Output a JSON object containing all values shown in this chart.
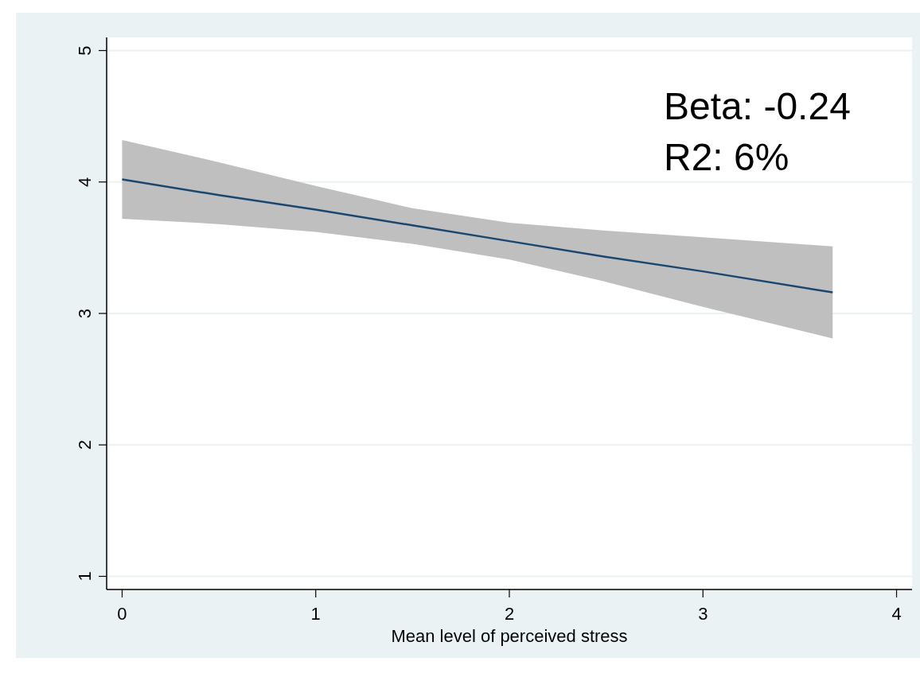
{
  "chart_data": {
    "type": "line",
    "xlabel": "Mean level of perceived stress",
    "annotations": [
      "Beta: -0.24",
      "R2: 6%"
    ],
    "xlim": [
      -0.08,
      4.08
    ],
    "xticks": [
      0,
      1,
      2,
      3,
      4
    ],
    "ylim": [
      0.9,
      5.1
    ],
    "yticks": [
      1,
      2,
      3,
      4,
      5
    ],
    "grid": "y",
    "series": [
      {
        "color": "#1a476f",
        "x": [
          0,
          0.5,
          1,
          1.5,
          2,
          2.5,
          3,
          3.67
        ],
        "values": [
          4.02,
          3.9,
          3.79,
          3.67,
          3.55,
          3.43,
          3.32,
          3.16
        ],
        "lower": [
          3.72,
          3.68,
          3.62,
          3.53,
          3.41,
          3.24,
          3.05,
          2.81
        ],
        "upper": [
          4.32,
          4.15,
          3.97,
          3.8,
          3.69,
          3.63,
          3.58,
          3.51
        ]
      }
    ]
  }
}
